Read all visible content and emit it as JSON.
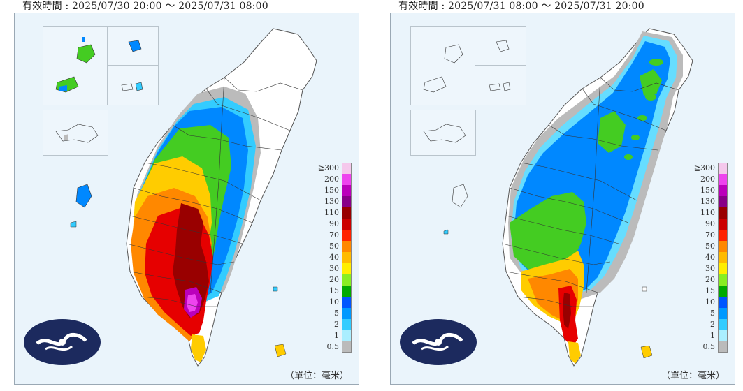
{
  "maps": [
    {
      "period_label": "有效時間 : 2025/07/30 20:00 ～ 2025/07/31 08:00",
      "unit_label": "（單位：毫米）"
    },
    {
      "period_label": "有效時間 : 2025/07/31 08:00 ～ 2025/07/31 20:00",
      "unit_label": "（單位：毫米）"
    }
  ],
  "legend": [
    {
      "label": "≧300",
      "color": "#f5c8ec"
    },
    {
      "label": "200",
      "color": "#ee44ee"
    },
    {
      "label": "150",
      "color": "#bb00bb"
    },
    {
      "label": "130",
      "color": "#880088"
    },
    {
      "label": "110",
      "color": "#990000"
    },
    {
      "label": "90",
      "color": "#cc0000"
    },
    {
      "label": "70",
      "color": "#ff2200"
    },
    {
      "label": "50",
      "color": "#ff8800"
    },
    {
      "label": "40",
      "color": "#ffbb00"
    },
    {
      "label": "30",
      "color": "#ffee00"
    },
    {
      "label": "20",
      "color": "#88ee22"
    },
    {
      "label": "15",
      "color": "#00aa00"
    },
    {
      "label": "10",
      "color": "#0055ff"
    },
    {
      "label": "5",
      "color": "#0099ff"
    },
    {
      "label": "2",
      "color": "#33ccff"
    },
    {
      "label": "1",
      "color": "#aaeeff"
    },
    {
      "label": "0.5",
      "color": "#bbbbbb"
    }
  ]
}
